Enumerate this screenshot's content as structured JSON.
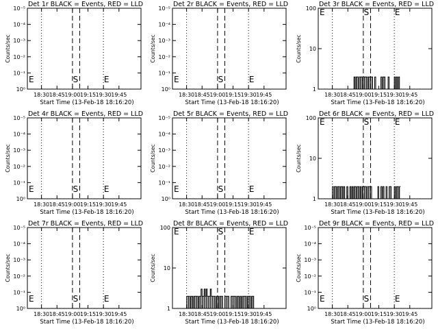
{
  "chart_data": [
    {
      "type": "line",
      "title": "Det 1r BLACK = Events, RED = LLD",
      "xlabel": "Start Time (13-Feb-18 18:16:20)",
      "ylabel": "Counts/sec",
      "yscale": "log",
      "yticks": [
        "10⁰",
        "10⁻¹",
        "10⁻²",
        "10⁻³",
        "10⁻⁴",
        "10⁻⁵"
      ],
      "ylim": [
        1e-05,
        1
      ],
      "xticks": [
        "18:30",
        "18:45",
        "19:00",
        "19:15",
        "19:30",
        "19:45"
      ],
      "markers": {
        "S": "S",
        "E": "E"
      },
      "series": []
    },
    {
      "type": "line",
      "title": "Det 2r BLACK = Events, RED = LLD",
      "xlabel": "Start Time (13-Feb-18 18:16:20)",
      "ylabel": "Counts/sec",
      "yscale": "log",
      "yticks": [
        "10⁰",
        "10⁻¹",
        "10⁻²",
        "10⁻³",
        "10⁻⁴",
        "10⁻⁵"
      ],
      "ylim": [
        1e-05,
        1
      ],
      "xticks": [
        "18:30",
        "18:45",
        "19:00",
        "19:15",
        "19:30",
        "19:45"
      ],
      "markers": {
        "S": "S",
        "E": "E"
      },
      "series": []
    },
    {
      "type": "line",
      "title": "Det 3r BLACK = Events, RED = LLD",
      "xlabel": "Start Time (13-Feb-18 18:16:20)",
      "ylabel": "Counts/sec",
      "yscale": "log",
      "yticks": [
        "100",
        "10",
        "1"
      ],
      "ylim": [
        1,
        100
      ],
      "xticks": [
        "18:30",
        "18:45",
        "19:00",
        "19:15",
        "19:30",
        "19:45"
      ],
      "markers": {
        "S": "S",
        "E": "E"
      },
      "series": [
        {
          "color": "#000000",
          "x": [
            "18:50",
            "18:51",
            "18:52",
            "18:53",
            "18:54",
            "18:55",
            "18:56",
            "18:57",
            "18:58",
            "18:59",
            "19:00",
            "19:01",
            "19:02",
            "19:03",
            "19:04",
            "19:05",
            "19:06",
            "19:07",
            "19:08",
            "19:09",
            "19:10",
            "19:11",
            "19:12",
            "19:13",
            "19:14",
            "19:15",
            "19:16",
            "19:17",
            "19:18",
            "19:19",
            "19:20",
            "19:21",
            "19:22",
            "19:23",
            "19:24",
            "19:25",
            "19:26",
            "19:27",
            "19:28",
            "19:29",
            "19:30",
            "19:31",
            "19:32",
            "19:33",
            "19:34",
            "19:35"
          ],
          "values": [
            1,
            2,
            1,
            2,
            2,
            1,
            2,
            2,
            2,
            1,
            2,
            2,
            2,
            2,
            1,
            2,
            2,
            2,
            2,
            1,
            1,
            2,
            1,
            1,
            1,
            1,
            1,
            2,
            1,
            2,
            2,
            1,
            1,
            1,
            2,
            1,
            1,
            1,
            1,
            1,
            2,
            1,
            2,
            1,
            2,
            1
          ]
        }
      ]
    },
    {
      "type": "line",
      "title": "Det 4r BLACK = Events, RED = LLD",
      "xlabel": "Start Time (13-Feb-18 18:16:20)",
      "ylabel": "Counts/sec",
      "yscale": "log",
      "yticks": [
        "10⁰",
        "10⁻¹",
        "10⁻²",
        "10⁻³",
        "10⁻⁴",
        "10⁻⁵"
      ],
      "ylim": [
        1e-05,
        1
      ],
      "xticks": [
        "18:30",
        "18:45",
        "19:00",
        "19:15",
        "19:30",
        "19:45"
      ],
      "markers": {
        "S": "S",
        "E": "E"
      },
      "series": []
    },
    {
      "type": "line",
      "title": "Det 5r BLACK = Events, RED = LLD",
      "xlabel": "Start Time (13-Feb-18 18:16:20)",
      "ylabel": "Counts/sec",
      "yscale": "log",
      "yticks": [
        "10⁰",
        "10⁻¹",
        "10⁻²",
        "10⁻³",
        "10⁻⁴",
        "10⁻⁵"
      ],
      "ylim": [
        1e-05,
        1
      ],
      "xticks": [
        "18:30",
        "18:45",
        "19:00",
        "19:15",
        "19:30",
        "19:45"
      ],
      "markers": {
        "S": "S",
        "E": "E"
      },
      "series": []
    },
    {
      "type": "line",
      "title": "Det 6r BLACK = Events, RED = LLD",
      "xlabel": "Start Time (13-Feb-18 18:16:20)",
      "ylabel": "Counts/sec",
      "yscale": "log",
      "yticks": [
        "100",
        "10",
        "1"
      ],
      "ylim": [
        1,
        100
      ],
      "xticks": [
        "18:30",
        "18:45",
        "19:00",
        "19:15",
        "19:30",
        "19:45"
      ],
      "markers": {
        "S": "S",
        "E": "E"
      },
      "series": [
        {
          "color": "#000000",
          "x": [
            "18:30",
            "18:31",
            "18:32",
            "18:33",
            "18:34",
            "18:35",
            "18:36",
            "18:37",
            "18:38",
            "18:39",
            "18:40",
            "18:41",
            "18:42",
            "18:43",
            "18:44",
            "18:45",
            "18:46",
            "18:47",
            "18:48",
            "18:49",
            "18:50",
            "18:51",
            "18:52",
            "18:53",
            "18:54",
            "18:55",
            "18:56",
            "18:57",
            "18:58",
            "18:59",
            "19:00",
            "19:01",
            "19:02",
            "19:03",
            "19:04",
            "19:05",
            "19:06",
            "19:07",
            "19:08",
            "19:09",
            "19:10",
            "19:11",
            "19:12",
            "19:13",
            "19:14",
            "19:15",
            "19:16",
            "19:17",
            "19:18",
            "19:19",
            "19:20",
            "19:21",
            "19:22",
            "19:23",
            "19:24",
            "19:25",
            "19:26",
            "19:27",
            "19:28",
            "19:29",
            "19:30",
            "19:31",
            "19:32",
            "19:33",
            "19:34",
            "19:35"
          ],
          "values": [
            2,
            1,
            2,
            2,
            1,
            2,
            2,
            1,
            2,
            2,
            1,
            2,
            1,
            1,
            2,
            1,
            1,
            2,
            1,
            2,
            1,
            2,
            2,
            1,
            2,
            2,
            1,
            2,
            1,
            2,
            2,
            2,
            2,
            1,
            2,
            2,
            2,
            2,
            1,
            1,
            1,
            1,
            1,
            1,
            2,
            1,
            1,
            2,
            1,
            2,
            1,
            1,
            2,
            1,
            1,
            2,
            2,
            1,
            1,
            1,
            2,
            1,
            2,
            2,
            1,
            2
          ]
        }
      ]
    },
    {
      "type": "line",
      "title": "Det 7r BLACK = Events, RED = LLD",
      "xlabel": "Start Time (13-Feb-18 18:16:20)",
      "ylabel": "Counts/sec",
      "yscale": "log",
      "yticks": [
        "10⁰",
        "10⁻¹",
        "10⁻²",
        "10⁻³",
        "10⁻⁴",
        "10⁻⁵"
      ],
      "ylim": [
        1e-05,
        1
      ],
      "xticks": [
        "18:30",
        "18:45",
        "19:00",
        "19:15",
        "19:30",
        "19:45"
      ],
      "markers": {
        "S": "S",
        "E": "E"
      },
      "series": []
    },
    {
      "type": "line",
      "title": "Det 8r BLACK = Events, RED = LLD",
      "xlabel": "Start Time (13-Feb-18 18:16:20)",
      "ylabel": "Counts/sec",
      "yscale": "log",
      "yticks": [
        "100",
        "10",
        "1"
      ],
      "ylim": [
        1,
        100
      ],
      "xticks": [
        "18:30",
        "18:45",
        "19:00",
        "19:15",
        "19:30",
        "19:45"
      ],
      "markers": {
        "S": "S",
        "E": "E"
      },
      "series": [
        {
          "color": "#000000",
          "x": [
            "18:30",
            "18:31",
            "18:32",
            "18:33",
            "18:34",
            "18:35",
            "18:36",
            "18:37",
            "18:38",
            "18:39",
            "18:40",
            "18:41",
            "18:42",
            "18:43",
            "18:44",
            "18:45",
            "18:46",
            "18:47",
            "18:48",
            "18:49",
            "18:50",
            "18:51",
            "18:52",
            "18:53",
            "18:54",
            "18:55",
            "18:56",
            "18:57",
            "18:58",
            "18:59",
            "19:00",
            "19:01",
            "19:02",
            "19:03",
            "19:04",
            "19:05",
            "19:06",
            "19:07",
            "19:08",
            "19:09",
            "19:10",
            "19:11",
            "19:12",
            "19:13",
            "19:14",
            "19:15",
            "19:16",
            "19:17",
            "19:18",
            "19:19",
            "19:20",
            "19:21",
            "19:22",
            "19:23",
            "19:24",
            "19:25",
            "19:26",
            "19:27",
            "19:28",
            "19:29",
            "19:30",
            "19:31",
            "19:32",
            "19:33",
            "19:34",
            "19:35"
          ],
          "values": [
            2,
            2,
            2,
            1,
            2,
            2,
            1,
            2,
            2,
            2,
            2,
            1,
            2,
            2,
            3,
            2,
            2,
            3,
            2,
            3,
            2,
            2,
            2,
            3,
            2,
            2,
            2,
            2,
            1,
            2,
            2,
            1,
            2,
            2,
            2,
            1,
            1,
            2,
            2,
            2,
            2,
            1,
            1,
            2,
            2,
            2,
            2,
            2,
            1,
            2,
            2,
            1,
            2,
            1,
            2,
            2,
            2,
            2,
            1,
            2,
            2,
            2,
            1,
            2,
            2,
            1
          ]
        }
      ]
    },
    {
      "type": "line",
      "title": "Det 9r BLACK = Events, RED = LLD",
      "xlabel": "Start Time (13-Feb-18 18:16:20)",
      "ylabel": "Counts/sec",
      "yscale": "log",
      "yticks": [
        "10⁰",
        "10⁻¹",
        "10⁻²",
        "10⁻³",
        "10⁻⁴",
        "10⁻⁵"
      ],
      "ylim": [
        1e-05,
        1
      ],
      "xticks": [
        "18:30",
        "18:45",
        "19:00",
        "19:15",
        "19:30",
        "19:45"
      ],
      "markers": {
        "S": "S",
        "E": "E"
      },
      "series": []
    }
  ]
}
